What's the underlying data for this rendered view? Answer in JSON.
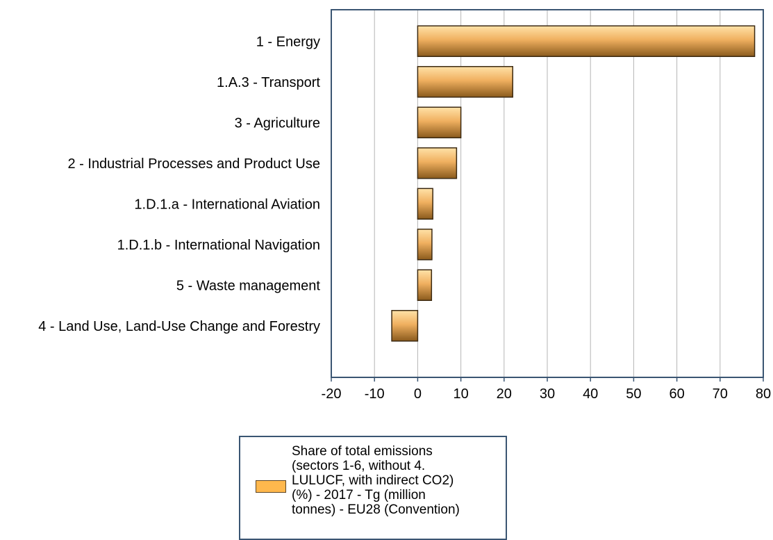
{
  "chart_data": {
    "type": "bar",
    "orientation": "horizontal",
    "categories": [
      "1 - Energy",
      "1.A.3 - Transport",
      "3 - Agriculture",
      "2 - Industrial Processes and Product Use",
      "1.D.1.a - International Aviation",
      "1.D.1.b - International Navigation",
      "5 - Waste management",
      "4 - Land Use, Land-Use Change and Forestry"
    ],
    "series": [
      {
        "name": "Share of total emissions\n(sectors 1-6, without 4.\nLULUCF, with indirect CO2)\n(%) - 2017 - Tg (million\ntonnes) - EU28 (Convention)",
        "values": [
          78,
          22,
          10,
          9,
          3.5,
          3.3,
          3.2,
          -6
        ],
        "color": "#ffb84d"
      }
    ],
    "xlim": [
      -20,
      80
    ],
    "xticks": [
      "-20",
      "-10",
      "0",
      "10",
      "20",
      "30",
      "40",
      "50",
      "60",
      "70",
      "80"
    ],
    "title": "",
    "xlabel": "",
    "ylabel": "",
    "grid": "vertical",
    "legend_position": "bottom-center",
    "colors": {
      "bar_light": "#ffe2a8",
      "bar_mid": "#e8a04a",
      "bar_dark": "#8a5a1c",
      "bar_border": "#3c2a12",
      "frame": "#3a5572",
      "grid": "#b5b5b5"
    }
  }
}
